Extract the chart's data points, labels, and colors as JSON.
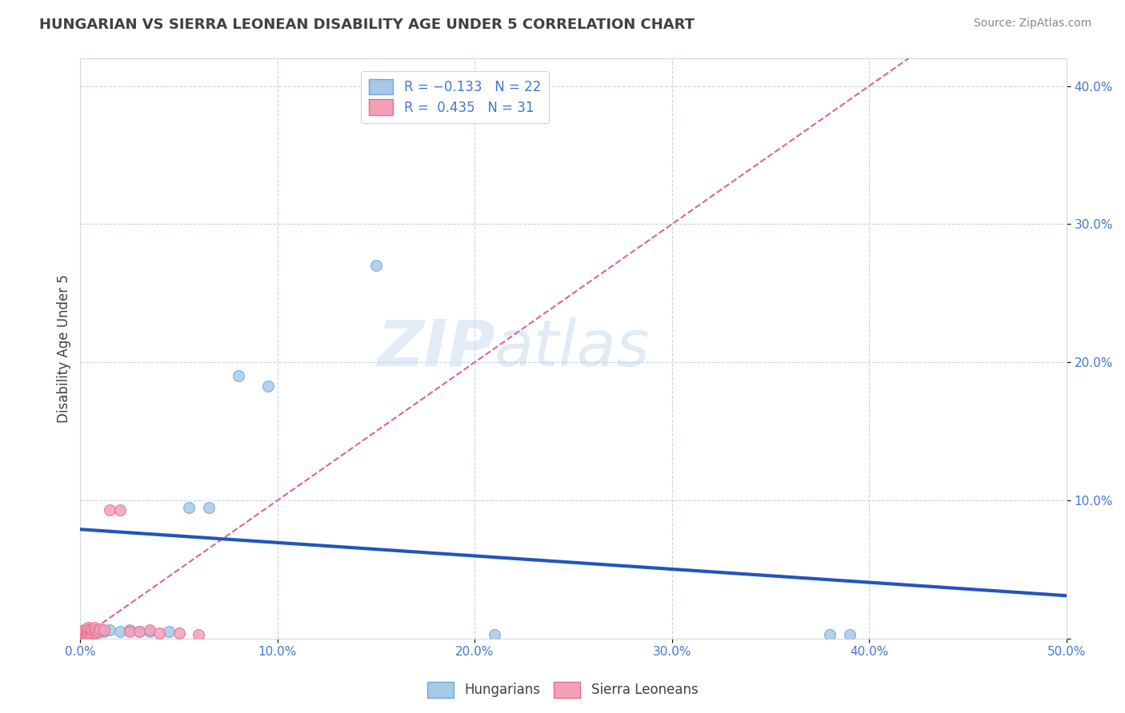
{
  "title": "HUNGARIAN VS SIERRA LEONEAN DISABILITY AGE UNDER 5 CORRELATION CHART",
  "source": "Source: ZipAtlas.com",
  "ylabel": "Disability Age Under 5",
  "xlim": [
    0.0,
    0.5
  ],
  "ylim": [
    0.0,
    0.42
  ],
  "xticks": [
    0.0,
    0.1,
    0.2,
    0.3,
    0.4,
    0.5
  ],
  "xticklabels": [
    "0.0%",
    "10.0%",
    "20.0%",
    "30.0%",
    "40.0%",
    "50.0%"
  ],
  "yticks": [
    0.0,
    0.1,
    0.2,
    0.3,
    0.4
  ],
  "yticklabels": [
    "",
    "10.0%",
    "20.0%",
    "30.0%",
    "40.0%"
  ],
  "hungarian_color": "#a8c8e8",
  "sierraleone_color": "#f4a0b8",
  "hungarian_edge": "#6aaad4",
  "sierraleone_edge": "#e07090",
  "trend_hungarian_color": "#2255bb",
  "trend_sierraleone_color": "#dd6688",
  "background_color": "#ffffff",
  "grid_color": "#c8d4e8",
  "watermark_zip": "ZIP",
  "watermark_atlas": "atlas",
  "tick_color": "#4477cc",
  "marker_size": 100,
  "hungarian_points": [
    [
      0.001,
      0.003
    ],
    [
      0.003,
      0.004
    ],
    [
      0.004,
      0.005
    ],
    [
      0.005,
      0.003
    ],
    [
      0.006,
      0.005
    ],
    [
      0.007,
      0.004
    ],
    [
      0.008,
      0.006
    ],
    [
      0.01,
      0.005
    ],
    [
      0.012,
      0.005
    ],
    [
      0.015,
      0.006
    ],
    [
      0.02,
      0.005
    ],
    [
      0.025,
      0.006
    ],
    [
      0.03,
      0.005
    ],
    [
      0.035,
      0.005
    ],
    [
      0.055,
      0.095
    ],
    [
      0.065,
      0.095
    ],
    [
      0.08,
      0.19
    ],
    [
      0.095,
      0.183
    ],
    [
      0.15,
      0.27
    ],
    [
      0.045,
      0.005
    ],
    [
      0.21,
      0.003
    ],
    [
      0.38,
      0.003
    ],
    [
      0.39,
      0.003
    ]
  ],
  "sierraleone_points": [
    [
      0.001,
      0.002
    ],
    [
      0.001,
      0.003
    ],
    [
      0.002,
      0.004
    ],
    [
      0.002,
      0.005
    ],
    [
      0.002,
      0.006
    ],
    [
      0.003,
      0.003
    ],
    [
      0.003,
      0.005
    ],
    [
      0.003,
      0.007
    ],
    [
      0.004,
      0.004
    ],
    [
      0.004,
      0.006
    ],
    [
      0.004,
      0.008
    ],
    [
      0.005,
      0.003
    ],
    [
      0.005,
      0.005
    ],
    [
      0.005,
      0.007
    ],
    [
      0.006,
      0.004
    ],
    [
      0.006,
      0.006
    ],
    [
      0.007,
      0.005
    ],
    [
      0.007,
      0.008
    ],
    [
      0.008,
      0.004
    ],
    [
      0.008,
      0.006
    ],
    [
      0.009,
      0.005
    ],
    [
      0.01,
      0.007
    ],
    [
      0.012,
      0.006
    ],
    [
      0.015,
      0.093
    ],
    [
      0.02,
      0.093
    ],
    [
      0.025,
      0.005
    ],
    [
      0.03,
      0.005
    ],
    [
      0.035,
      0.006
    ],
    [
      0.04,
      0.004
    ],
    [
      0.05,
      0.004
    ],
    [
      0.06,
      0.003
    ]
  ],
  "trend_h_x0": 0.0,
  "trend_h_y0": 0.079,
  "trend_h_x1": 0.5,
  "trend_h_y1": 0.031,
  "trend_s_x0": 0.0,
  "trend_s_y0": 0.0,
  "trend_s_x1": 0.42,
  "trend_s_y1": 0.42
}
